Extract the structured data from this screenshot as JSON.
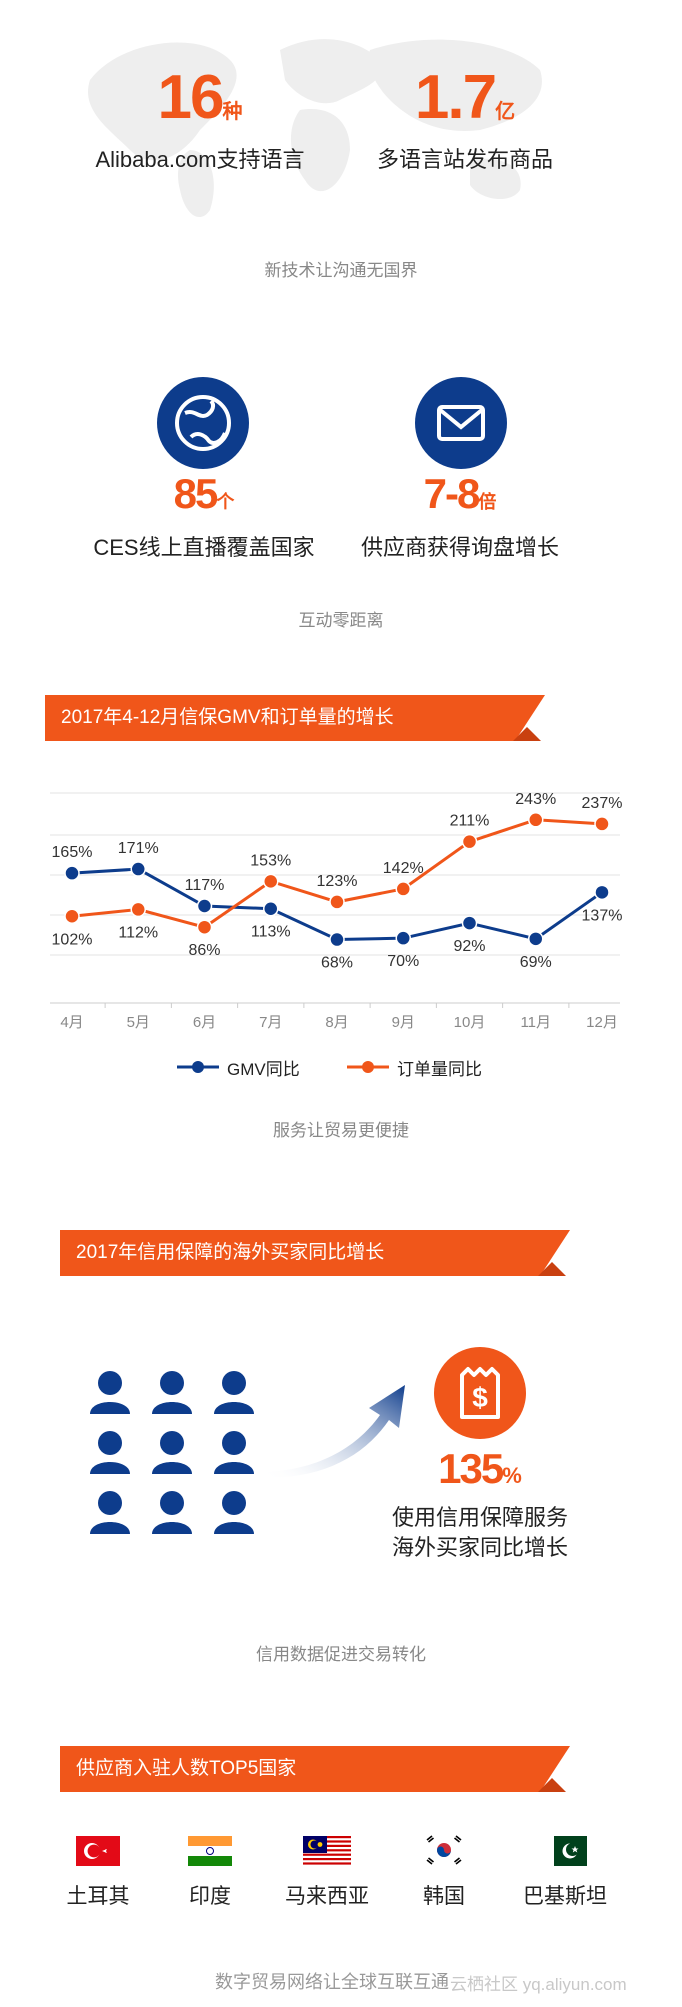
{
  "section_languages": {
    "stat1": {
      "value": "16",
      "unit": "种",
      "label": "Alibaba.com支持语言"
    },
    "stat2": {
      "value": "1.7",
      "unit": "亿",
      "label": "多语言站发布商品"
    },
    "caption": "新技术让沟通无国界"
  },
  "section_interaction": {
    "stat1": {
      "value": "85",
      "unit": "个",
      "label": "CES线上直播覆盖国家",
      "icon": "globe-icon"
    },
    "stat2": {
      "value": "7-8",
      "unit": "倍",
      "label": "供应商获得询盘增长",
      "icon": "envelope-icon"
    },
    "caption": "互动零距离"
  },
  "section_chart": {
    "banner": "2017年4-12月信保GMV和订单量的增长",
    "caption": "服务让贸易更便捷"
  },
  "chart_data": {
    "type": "line",
    "categories": [
      "4月",
      "5月",
      "6月",
      "7月",
      "8月",
      "9月",
      "10月",
      "11月",
      "12月"
    ],
    "series": [
      {
        "name": "GMV同比",
        "values": [
          165,
          171,
          117,
          113,
          68,
          70,
          92,
          69,
          137
        ],
        "labels": [
          "165%",
          "171%",
          "117%",
          "113%",
          "68%",
          "70%",
          "92%",
          "69%",
          "137%"
        ],
        "color": "#0d3c8c"
      },
      {
        "name": "订单量同比",
        "values": [
          102,
          112,
          86,
          153,
          123,
          142,
          211,
          243,
          237
        ],
        "labels": [
          "102%",
          "112%",
          "86%",
          "153%",
          "123%",
          "142%",
          "211%",
          "243%",
          "237%"
        ],
        "color": "#f0561a"
      }
    ],
    "legend_position": "bottom",
    "grid": true
  },
  "section_buyers": {
    "banner": "2017年信用保障的海外买家同比增长",
    "value": "135",
    "unit": "%",
    "line1": "使用信用保障服务",
    "line2": "海外买家同比增长",
    "caption": "信用数据促进交易转化",
    "icon": "shopping-bag-dollar-icon"
  },
  "section_countries": {
    "banner": "供应商入驻人数TOP5国家",
    "countries": [
      {
        "name": "土耳其",
        "icon": "turkey-flag-icon"
      },
      {
        "name": "印度",
        "icon": "india-flag-icon"
      },
      {
        "name": "马来西亚",
        "icon": "malaysia-flag-icon"
      },
      {
        "name": "韩国",
        "icon": "korea-flag-icon"
      },
      {
        "name": "巴基斯坦",
        "icon": "pakistan-flag-icon"
      }
    ],
    "footer": "数字贸易网络让全球互联互通",
    "watermark": "云栖社区 yq.aliyun.com"
  },
  "colors": {
    "accent": "#f0561a",
    "navy": "#0d3c8c",
    "caption_gray": "#888888"
  }
}
